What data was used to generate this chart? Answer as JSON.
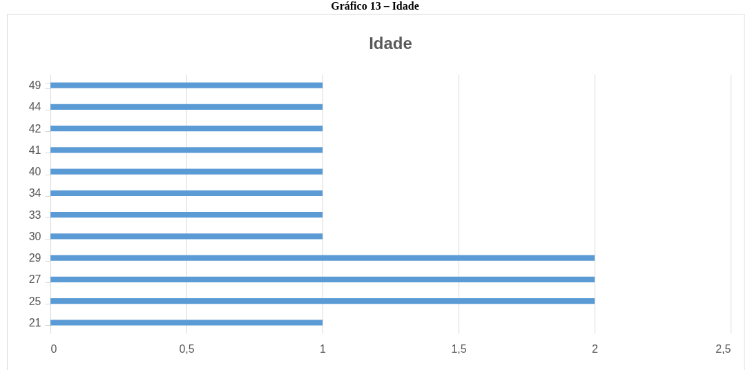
{
  "chart_data": {
    "type": "bar",
    "orientation": "horizontal",
    "title": "Idade",
    "annotations": [
      "Gráfico 13 – Idade"
    ],
    "categories": [
      "49",
      "44",
      "42",
      "41",
      "40",
      "34",
      "33",
      "30",
      "29",
      "27",
      "25",
      "21"
    ],
    "values": [
      1,
      1,
      1,
      1,
      1,
      1,
      1,
      1,
      2,
      2,
      2,
      1
    ],
    "color": "#5b9bd5",
    "xlim": [
      0,
      2.5
    ],
    "xticks": [
      0,
      {
        "value": 0.5,
        "label": "0,5"
      },
      1,
      {
        "value": 1.5,
        "label": "1,5"
      },
      2,
      {
        "value": 2.5,
        "label": "2,5"
      }
    ],
    "grid": "x"
  }
}
